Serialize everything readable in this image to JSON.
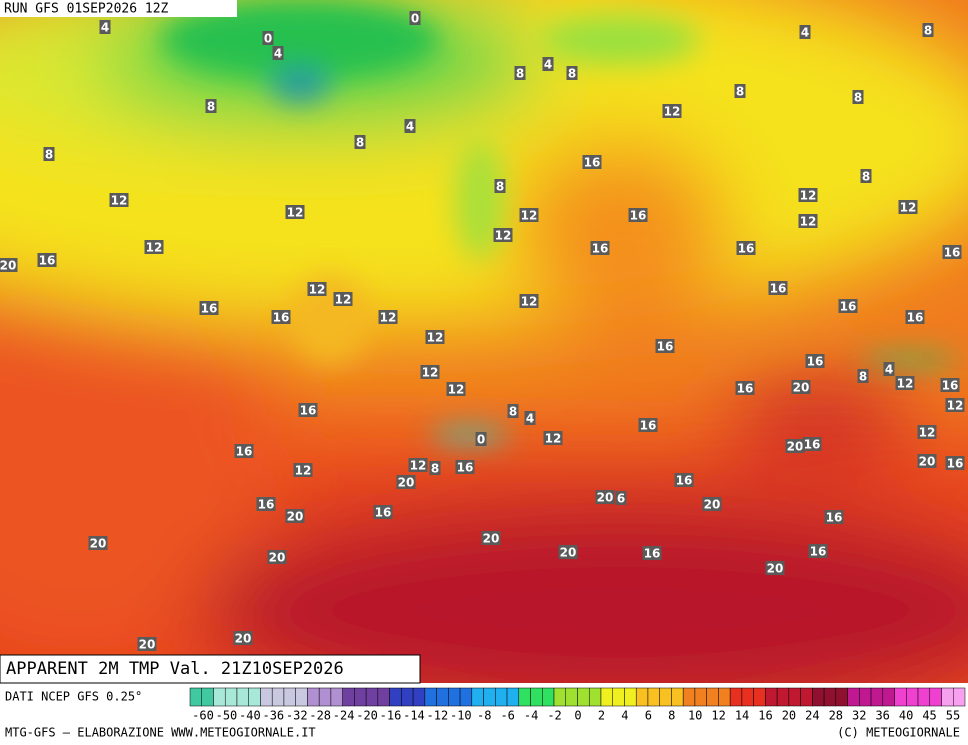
{
  "header": {
    "run": "RUN GFS 01SEP2026 12Z"
  },
  "map": {
    "title": "APPARENT 2M TMP Val. 21Z10SEP2026",
    "contour_labels": [
      0,
      4,
      0,
      4,
      8,
      4,
      8,
      4,
      8,
      8,
      4,
      8,
      8,
      12,
      8,
      8,
      16,
      8,
      8,
      12,
      12,
      12,
      16,
      12,
      12,
      12,
      12,
      16,
      12,
      20,
      16,
      16,
      16,
      12,
      12,
      16,
      12,
      16,
      16,
      12,
      16,
      16,
      12,
      16,
      12,
      12,
      16,
      4,
      8,
      12,
      16,
      20,
      16,
      12,
      16,
      8,
      4,
      0,
      12,
      16,
      12,
      20,
      16,
      16,
      12,
      12,
      8,
      16,
      20,
      16,
      16,
      20,
      20,
      6,
      16,
      20,
      20,
      16,
      16,
      20,
      20,
      20,
      16,
      16,
      20,
      20,
      20,
      20
    ]
  },
  "legend": {
    "source": "DATI NCEP GFS 0.25°",
    "scale": [
      -60,
      -50,
      -40,
      -36,
      -32,
      -28,
      -24,
      -20,
      -16,
      -14,
      -12,
      -10,
      -8,
      -6,
      -4,
      -2,
      0,
      2,
      4,
      6,
      8,
      10,
      12,
      14,
      16,
      20,
      24,
      28,
      32,
      36,
      40,
      45,
      55
    ]
  },
  "footer": {
    "credit": "MTG-GFS — ELABORAZIONE WWW.METEOGIORNALE.IT",
    "copyright": "(C) METEOGIORNALE"
  }
}
